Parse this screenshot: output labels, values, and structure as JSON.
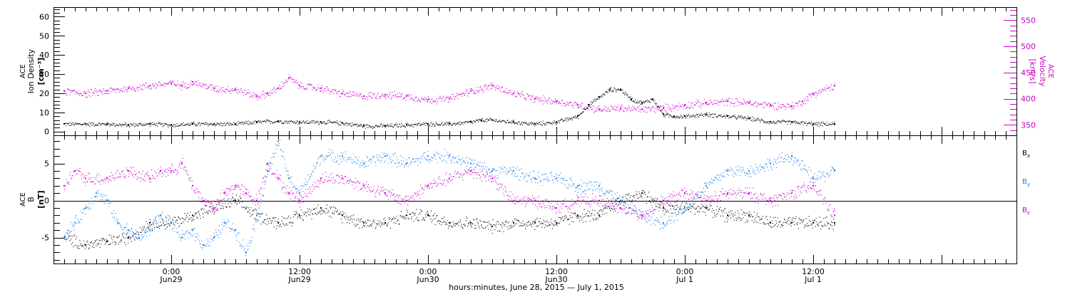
{
  "colors": {
    "black": "#000000",
    "magenta": "#cc00cc",
    "blue": "#1a80e6"
  },
  "xaxis": {
    "title": "hours:minutes, June 28, 2015 — July 1, 2015",
    "range_hours": [
      -11,
      79
    ],
    "major_ticks": [
      {
        "h": 0,
        "time": "0:00",
        "date": "Jun29"
      },
      {
        "h": 12,
        "time": "12:00",
        "date": "Jun29"
      },
      {
        "h": 24,
        "time": "0:00",
        "date": "Jun30"
      },
      {
        "h": 36,
        "time": "12:00",
        "date": "Jun30"
      },
      {
        "h": 48,
        "time": "0:00",
        "date": "Jul 1"
      },
      {
        "h": 60,
        "time": "12:00",
        "date": "Jul 1"
      }
    ]
  },
  "chart_data": [
    {
      "type": "scatter",
      "ylabel_left": [
        "ACE",
        "Ion Density",
        "[cm⁻³]"
      ],
      "ylabel_right": [
        "ACE",
        "Velocity",
        "[km/s]"
      ],
      "ylim_left": [
        -2,
        65
      ],
      "ylim_right": [
        330,
        575
      ],
      "yticks_left": [
        0,
        10,
        20,
        30,
        40,
        50,
        60
      ],
      "yticks_right": [
        350,
        400,
        450,
        500,
        550
      ],
      "series": [
        {
          "axis": "left",
          "color": "black",
          "x": [
            -10,
            -8,
            -6,
            -4,
            -2,
            0,
            2,
            4,
            6,
            8,
            10,
            12,
            14,
            16,
            18,
            20,
            22,
            24,
            26,
            28,
            29,
            30,
            32,
            34,
            36,
            38,
            39,
            40,
            41,
            42,
            43,
            44,
            45,
            46,
            47,
            48,
            50,
            52,
            54,
            56,
            58,
            60,
            62
          ],
          "y": [
            4,
            4,
            4,
            3.5,
            4,
            3.5,
            4,
            4,
            4,
            5,
            5.5,
            5,
            5,
            4.5,
            3,
            3,
            3.5,
            4,
            4,
            5,
            6,
            6,
            5,
            4,
            5,
            8,
            14,
            18,
            22,
            22,
            17,
            15,
            17,
            9,
            8,
            8,
            9,
            8,
            7,
            5,
            5,
            4,
            4
          ]
        },
        {
          "axis": "right",
          "color": "magenta",
          "x": [
            -10,
            -8,
            -6,
            -4,
            -2,
            0,
            1,
            2,
            4,
            6,
            8,
            9,
            10,
            11,
            12,
            14,
            16,
            18,
            20,
            22,
            24,
            26,
            28,
            30,
            32,
            34,
            36,
            38,
            40,
            42,
            44,
            46,
            48,
            50,
            52,
            54,
            56,
            58,
            59,
            60,
            62
          ],
          "y": [
            415,
            410,
            415,
            420,
            425,
            430,
            425,
            432,
            420,
            418,
            405,
            410,
            420,
            440,
            425,
            420,
            410,
            405,
            408,
            405,
            398,
            400,
            415,
            425,
            410,
            400,
            395,
            388,
            380,
            382,
            380,
            382,
            388,
            392,
            395,
            392,
            388,
            386,
            395,
            410,
            425
          ]
        }
      ]
    },
    {
      "type": "scatter",
      "ylabel_left": [
        "ACE",
        "B",
        "[nT]"
      ],
      "ylim": [
        -8.5,
        8.8
      ],
      "yticks": [
        -5,
        0,
        5
      ],
      "legend": [
        {
          "base": "B",
          "sub": "x",
          "color": "black"
        },
        {
          "base": "B",
          "sub": "y",
          "color": "blue"
        },
        {
          "base": "B",
          "sub": "z",
          "color": "magenta"
        }
      ],
      "series": [
        {
          "name": "Bx",
          "color": "black",
          "x": [
            -10,
            -8,
            -6,
            -4,
            -2,
            0,
            2,
            4,
            6,
            8,
            10,
            12,
            14,
            16,
            18,
            20,
            22,
            24,
            26,
            28,
            30,
            32,
            34,
            36,
            38,
            40,
            42,
            44,
            46,
            48,
            50,
            52,
            54,
            56,
            58,
            60,
            62
          ],
          "y": [
            -5,
            -6,
            -5.5,
            -5,
            -3,
            -3,
            -2,
            -1,
            0,
            -2,
            -3,
            -2,
            -1,
            -2,
            -3,
            -3,
            -2,
            -2,
            -3,
            -3,
            -3.5,
            -3,
            -3,
            -3,
            -2,
            -2,
            0,
            1,
            -1,
            -1,
            -1,
            -2,
            -2,
            -3,
            -3,
            -3,
            -3
          ]
        },
        {
          "name": "By",
          "color": "blue",
          "x": [
            -10,
            -9,
            -8,
            -7,
            -6,
            -5,
            -4,
            -3,
            -2,
            -1,
            0,
            1,
            2,
            3,
            4,
            5,
            6,
            7,
            8,
            9,
            10,
            11,
            12,
            14,
            16,
            18,
            20,
            22,
            24,
            26,
            28,
            30,
            32,
            34,
            36,
            38,
            40,
            42,
            44,
            46,
            48,
            50,
            52,
            54,
            56,
            58,
            60,
            62
          ],
          "y": [
            -5,
            -3,
            -1,
            1,
            0,
            -3,
            -4,
            -5,
            -4,
            -2,
            -3,
            -5,
            -4,
            -6,
            -5,
            -3,
            -4,
            -7,
            -2,
            4,
            8,
            3,
            1,
            6,
            6,
            5,
            6,
            5,
            6,
            6,
            5,
            4,
            4,
            3,
            3,
            2,
            2,
            0,
            -2,
            -3,
            -1,
            2,
            4,
            4,
            5,
            6,
            3,
            4
          ]
        },
        {
          "name": "Bz",
          "color": "magenta",
          "x": [
            -10,
            -9,
            -8,
            -6,
            -4,
            -2,
            -1,
            0,
            1,
            2,
            3,
            4,
            5,
            6,
            7,
            8,
            9,
            10,
            11,
            12,
            14,
            16,
            18,
            20,
            22,
            24,
            26,
            28,
            30,
            32,
            34,
            36,
            38,
            40,
            42,
            44,
            46,
            48,
            50,
            52,
            54,
            56,
            58,
            60,
            62
          ],
          "y": [
            2,
            4,
            3,
            3,
            4,
            3,
            4,
            4,
            5,
            2,
            0,
            -1,
            1,
            2,
            1,
            0,
            5,
            3,
            1,
            0,
            3,
            3,
            2,
            1,
            0,
            2,
            3,
            4,
            3,
            0,
            0,
            -1,
            0,
            0,
            -1,
            -2,
            0,
            1,
            0,
            1,
            1,
            0,
            1,
            2,
            -2
          ]
        }
      ]
    }
  ]
}
